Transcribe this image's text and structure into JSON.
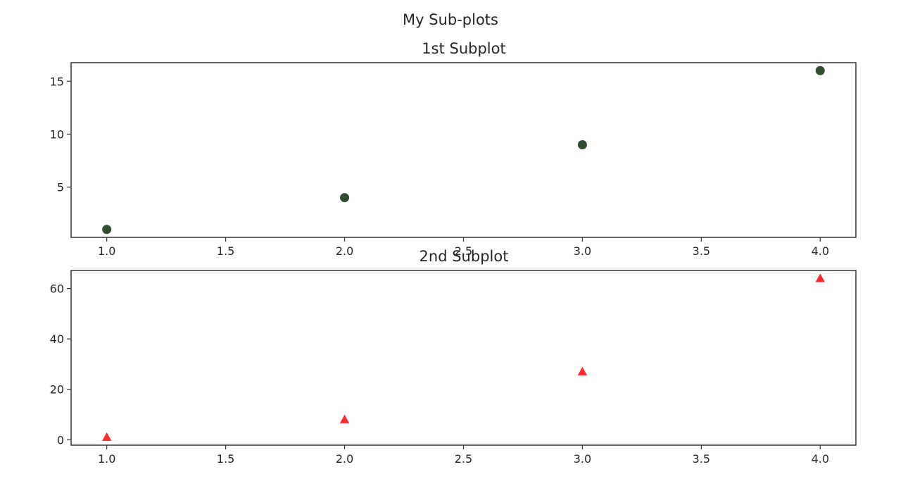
{
  "figure": {
    "suptitle": "My Sub-plots"
  },
  "chart_data": [
    {
      "type": "scatter",
      "title": "1st Subplot",
      "xlabel": "",
      "ylabel": "",
      "x": [
        1.0,
        2.0,
        3.0,
        4.0
      ],
      "y": [
        1,
        4,
        9,
        16
      ],
      "xlim": [
        0.85,
        4.15
      ],
      "ylim": [
        0.25,
        16.75
      ],
      "xticks": [
        1.0,
        1.5,
        2.0,
        2.5,
        3.0,
        3.5,
        4.0
      ],
      "xtick_labels": [
        "1.0",
        "1.5",
        "2.0",
        "2.5",
        "3.0",
        "3.5",
        "4.0"
      ],
      "yticks": [
        5,
        10,
        15
      ],
      "ytick_labels": [
        "5",
        "10",
        "15"
      ],
      "marker": "circle",
      "color": "#2f4f2f",
      "grid": false
    },
    {
      "type": "scatter",
      "title": "2nd Subplot",
      "xlabel": "",
      "ylabel": "",
      "x": [
        1.0,
        2.0,
        3.0,
        4.0
      ],
      "y": [
        1,
        8,
        27,
        64
      ],
      "xlim": [
        0.85,
        4.15
      ],
      "ylim": [
        -2.15,
        67.15
      ],
      "xticks": [
        1.0,
        1.5,
        2.0,
        2.5,
        3.0,
        3.5,
        4.0
      ],
      "xtick_labels": [
        "1.0",
        "1.5",
        "2.0",
        "2.5",
        "3.0",
        "3.5",
        "4.0"
      ],
      "yticks": [
        0,
        20,
        40,
        60
      ],
      "ytick_labels": [
        "0",
        "20",
        "40",
        "60"
      ],
      "marker": "triangle",
      "color": "#ff2a2a",
      "grid": false
    }
  ]
}
